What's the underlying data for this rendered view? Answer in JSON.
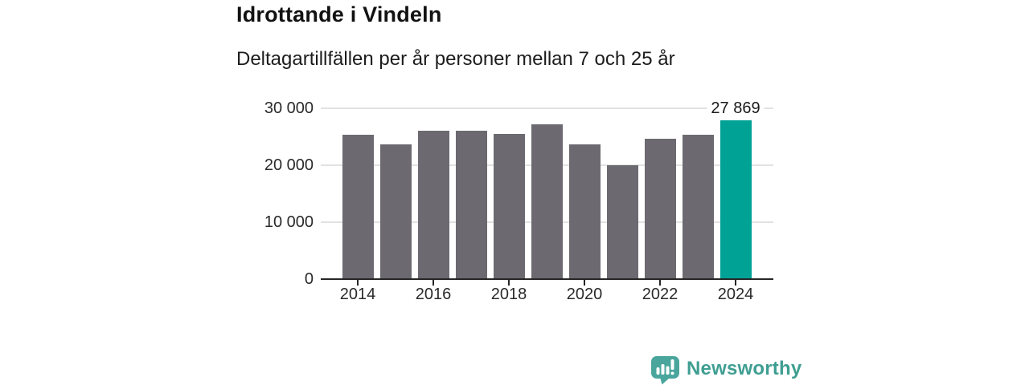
{
  "chart_data": {
    "type": "bar",
    "title": "Idrottande i Vindeln",
    "subtitle": "Deltagartillfällen per år personer mellan 7 och 25 år",
    "categories": [
      "2014",
      "2015",
      "2016",
      "2017",
      "2018",
      "2019",
      "2020",
      "2021",
      "2022",
      "2023",
      "2024"
    ],
    "values": [
      25400,
      23650,
      26100,
      26050,
      25450,
      27200,
      23700,
      19950,
      24600,
      25300,
      27869
    ],
    "highlight_index": 10,
    "highlight_value_label": "27 869",
    "ylim": [
      0,
      30000
    ],
    "yticks": [
      0,
      10000,
      20000,
      30000
    ],
    "ytick_labels": [
      "0",
      "10 000",
      "20 000",
      "30 000"
    ],
    "xtick_labels": [
      "2014",
      "2016",
      "2018",
      "2020",
      "2022",
      "2024"
    ],
    "grid": "horizontal",
    "legend": "none",
    "xlabel": "",
    "ylabel": "",
    "bar_color": "#6c6a70",
    "highlight_color": "#00a296"
  },
  "footer": {
    "brand": "Newsworthy",
    "brand_color": "#3f9e92",
    "logo_icon": "bar-chart-speech-bubble-icon"
  }
}
